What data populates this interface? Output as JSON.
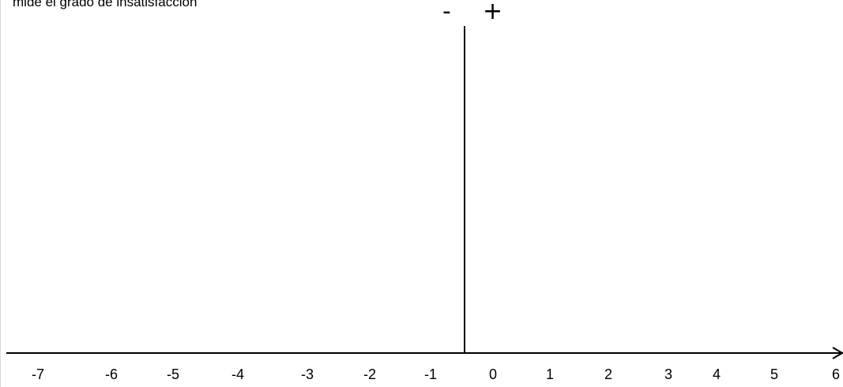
{
  "caption": "mide el grado de insatisfacción",
  "signs": {
    "negative": "-",
    "positive": "+"
  },
  "axis": {
    "tick_labels": [
      "-7",
      "-6",
      "-5",
      "-4",
      "-3",
      "-2",
      "-1",
      "0",
      "1",
      "2",
      "3",
      "4",
      "5",
      "6"
    ]
  },
  "colors": {
    "line": "#000000",
    "frame": "#d9d9d9"
  }
}
